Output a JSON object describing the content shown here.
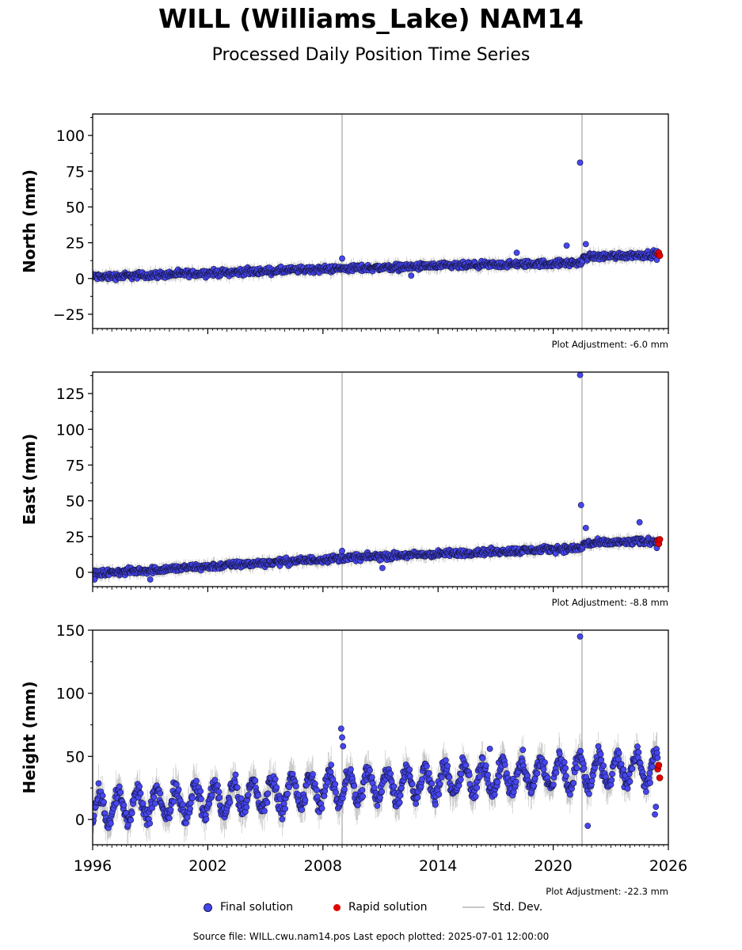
{
  "title": "WILL (Williams_Lake) NAM14",
  "subtitle": "Processed Daily Position Time Series",
  "colors": {
    "final": "#4646f0",
    "rapid": "#e00000",
    "std": "#c8c8c8",
    "edge": "#14143c"
  },
  "legend": {
    "final": "Final solution",
    "rapid": "Rapid solution",
    "std": "Std. Dev."
  },
  "source_text": "Source file: WILL.cwu.nam14.pos  Last epoch plotted: 2025-07-01 12:00:00",
  "chart_data": [
    {
      "type": "scatter",
      "ylabel": "North (mm)",
      "ylim": [
        -35,
        115
      ],
      "yticks": [
        -25,
        0,
        25,
        50,
        75,
        100
      ],
      "xlim": [
        1996,
        2026
      ],
      "xticks": [
        1996,
        2002,
        2008,
        2014,
        2020,
        2026
      ],
      "show_xticklabels": false,
      "adjustment": "Plot Adjustment: -6.0 mm",
      "trend": [
        [
          1996,
          1
        ],
        [
          2009,
          7
        ],
        [
          2021.5,
          11
        ],
        [
          2021.6,
          15
        ],
        [
          2025.5,
          17
        ]
      ],
      "noise": 2,
      "spikes": [
        [
          2009.0,
          14
        ],
        [
          2012.6,
          2
        ],
        [
          2018.1,
          18
        ],
        [
          2020.7,
          23
        ],
        [
          2021.4,
          81
        ],
        [
          2021.7,
          24
        ],
        [
          2025.4,
          13
        ]
      ],
      "rapid": [
        [
          2025.45,
          17
        ],
        [
          2025.5,
          18
        ],
        [
          2025.55,
          16
        ]
      ],
      "std_lines": [
        2009.0,
        2021.5
      ]
    },
    {
      "type": "scatter",
      "ylabel": "East (mm)",
      "ylim": [
        -10,
        140
      ],
      "yticks": [
        0,
        25,
        50,
        75,
        100,
        125
      ],
      "xlim": [
        1996,
        2026
      ],
      "xticks": [
        1996,
        2002,
        2008,
        2014,
        2020,
        2026
      ],
      "show_xticklabels": false,
      "adjustment": "Plot Adjustment: -8.8 mm",
      "trend": [
        [
          1996,
          -1
        ],
        [
          2009,
          10
        ],
        [
          2021.5,
          17
        ],
        [
          2021.6,
          20
        ],
        [
          2025.5,
          22
        ]
      ],
      "noise": 2,
      "spikes": [
        [
          1996.1,
          -5
        ],
        [
          1999.0,
          -5
        ],
        [
          2009.0,
          15
        ],
        [
          2011.1,
          3
        ],
        [
          2021.4,
          138
        ],
        [
          2021.45,
          47
        ],
        [
          2021.7,
          31
        ],
        [
          2024.5,
          35
        ],
        [
          2025.4,
          17
        ]
      ],
      "rapid": [
        [
          2025.45,
          22
        ],
        [
          2025.5,
          20
        ],
        [
          2025.55,
          23
        ]
      ],
      "std_lines": [
        2009.0,
        2021.5
      ]
    },
    {
      "type": "scatter",
      "ylabel": "Height (mm)",
      "ylim": [
        -20,
        150
      ],
      "yticks": [
        0,
        50,
        100,
        150
      ],
      "xlim": [
        1996,
        2026
      ],
      "xticks": [
        1996,
        2002,
        2008,
        2014,
        2020,
        2026
      ],
      "xticklabels": [
        "1996",
        "2002",
        "2008",
        "2014",
        "2020",
        "2026"
      ],
      "show_xticklabels": true,
      "adjustment": "Plot Adjustment: -22.3 mm",
      "trend": [
        [
          1996,
          8
        ],
        [
          2009,
          25
        ],
        [
          2021.5,
          38
        ],
        [
          2025.5,
          40
        ]
      ],
      "noise": 6,
      "seasonal": 12,
      "spikes": [
        [
          2008.95,
          72
        ],
        [
          2009.0,
          65
        ],
        [
          2009.05,
          58
        ],
        [
          2016.7,
          56
        ],
        [
          2021.4,
          145
        ],
        [
          2021.8,
          -5
        ],
        [
          2025.3,
          4
        ],
        [
          2025.35,
          10
        ]
      ],
      "rapid": [
        [
          2025.45,
          40
        ],
        [
          2025.5,
          43
        ],
        [
          2025.55,
          33
        ]
      ],
      "std_lines": [
        2009.0,
        2021.5
      ]
    }
  ]
}
